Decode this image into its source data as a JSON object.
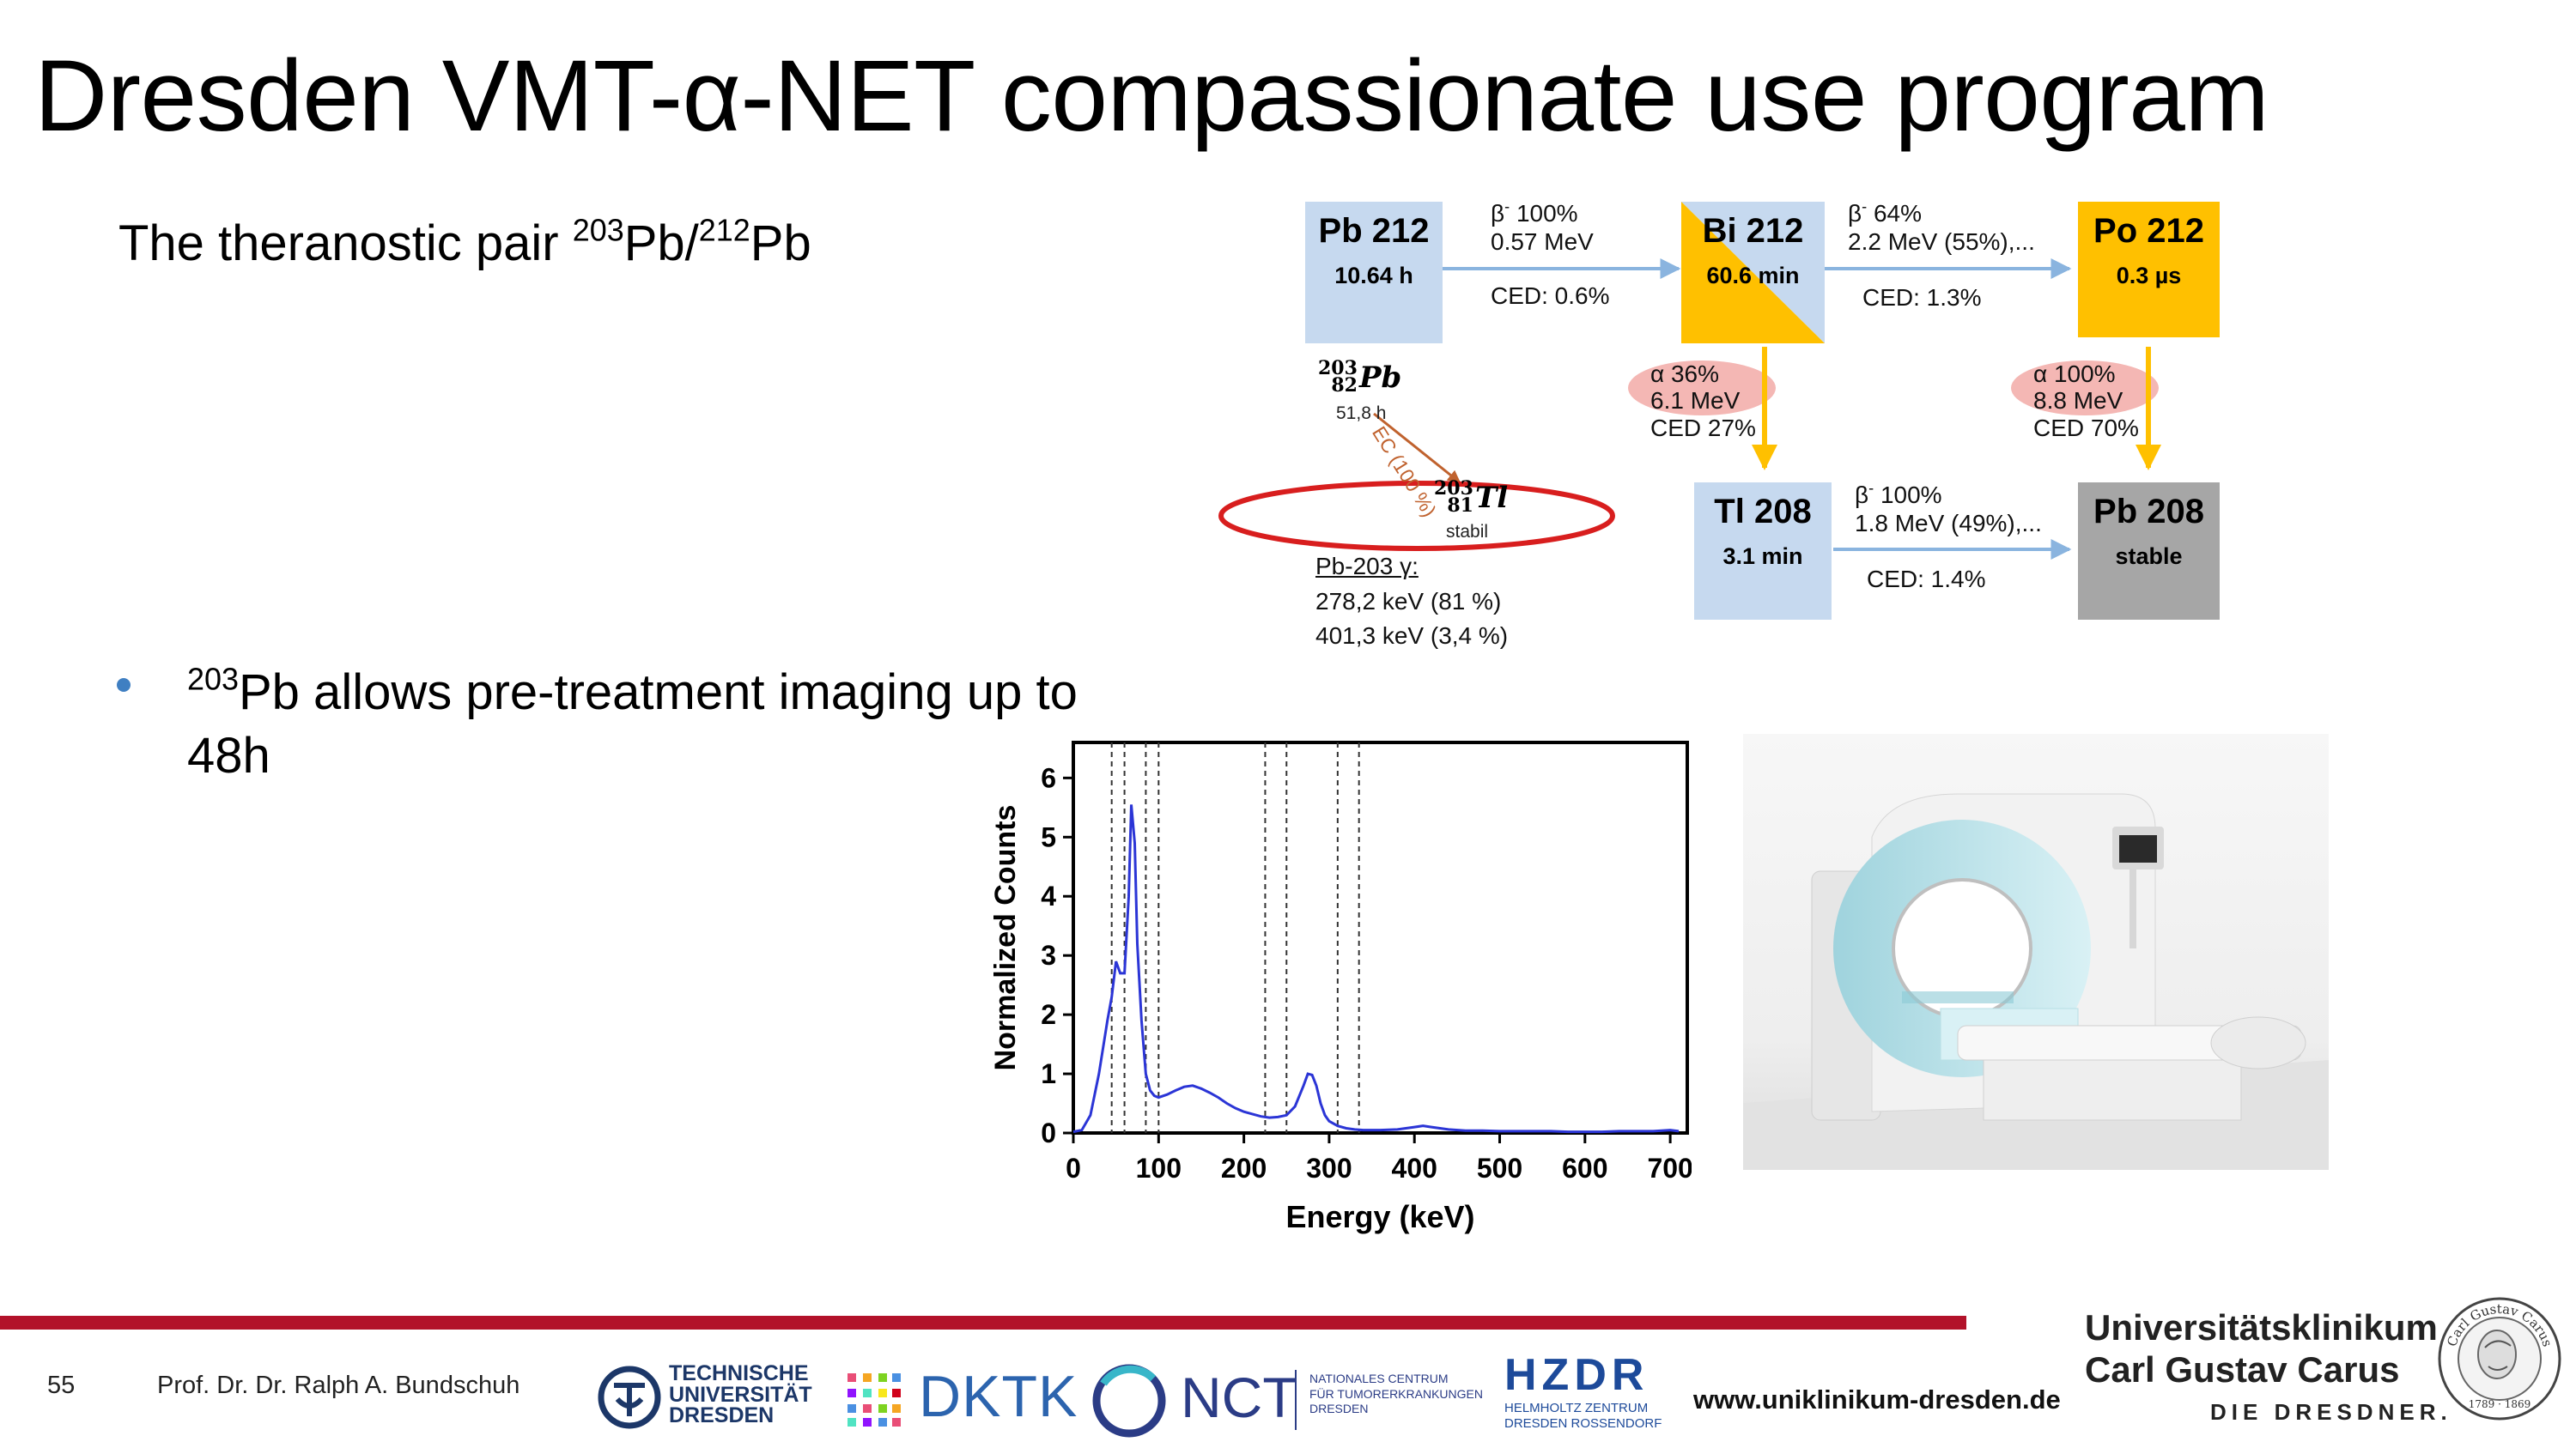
{
  "slide": {
    "title": "Dresden VMT-α-NET compassionate use program",
    "subtitle_prefix": "The theranostic pair ",
    "subtitle_sup1": "203",
    "subtitle_mid": "Pb/",
    "subtitle_sup2": "212",
    "subtitle_end": "Pb",
    "bullet_sup": "203",
    "bullet_text": "Pb allows pre-treatment imaging up to 48h"
  },
  "decay": {
    "nuclides": [
      {
        "name": "Pb 212",
        "halflife": "10.64 h"
      },
      {
        "name": "Bi 212",
        "halflife": "60.6 min"
      },
      {
        "name": "Po 212",
        "halflife": "0.3 µs"
      },
      {
        "name": "Tl 208",
        "halflife": "3.1 min"
      },
      {
        "name": "Pb 208",
        "halflife": "stable"
      }
    ],
    "transitions": {
      "pb212_bi212": {
        "beta": "β",
        "beta_sup": "-",
        "pct": " 100%",
        "energy": "0.57 MeV",
        "ced": "CED: 0.6%"
      },
      "bi212_po212": {
        "beta": "β",
        "beta_sup": "-",
        "pct": " 64%",
        "energy": "2.2 MeV (55%),...",
        "ced": "CED: 1.3%"
      },
      "bi212_tl208": {
        "alpha": "α 36%",
        "energy": "6.1 MeV",
        "ced": "CED 27%"
      },
      "po212_pb208": {
        "alpha": "α 100%",
        "energy": "8.8 MeV",
        "ced": "CED 70%"
      },
      "tl208_pb208": {
        "beta": "β",
        "beta_sup": "-",
        "pct": " 100%",
        "energy": "1.8 MeV (49%),...",
        "ced": "CED: 1.4%"
      }
    },
    "pb203": {
      "mass": "203",
      "z": "82",
      "symbol": "Pb",
      "halflife": "51,8 h",
      "ec": "EC (100 %)",
      "tl_mass": "203",
      "tl_z": "81",
      "tl_symbol": "Tl",
      "tl_state": "stabil",
      "gamma_title": "Pb-203 γ:",
      "gamma_lines": [
        "278,2 keV (81 %)",
        "401,3 keV (3,4 %)"
      ]
    },
    "colors": {
      "blue": "#c6d9ef",
      "yellow": "#ffc000",
      "gray": "#a6a6a6",
      "alpha_pink": "#f4b7b4",
      "arrow_blue": "#8ab4df",
      "ellipse_red": "#d81e1e"
    }
  },
  "chart_data": {
    "type": "line",
    "xlabel": "Energy (keV)",
    "ylabel": "Normalized Counts",
    "xlim": [
      0,
      720
    ],
    "ylim": [
      0,
      6.6
    ],
    "xticks": [
      0,
      100,
      200,
      300,
      400,
      500,
      600,
      700
    ],
    "yticks": [
      0,
      1,
      2,
      3,
      4,
      5,
      6
    ],
    "vlines": [
      45,
      60,
      85,
      100,
      225,
      250,
      310,
      335
    ],
    "series": [
      {
        "color": "#2b35d6",
        "x": [
          0,
          10,
          20,
          30,
          40,
          45,
          50,
          55,
          60,
          65,
          68,
          72,
          75,
          80,
          85,
          90,
          95,
          100,
          110,
          120,
          130,
          140,
          150,
          160,
          170,
          180,
          190,
          200,
          210,
          220,
          230,
          240,
          250,
          260,
          270,
          275,
          280,
          285,
          290,
          295,
          300,
          310,
          320,
          330,
          340,
          360,
          380,
          400,
          410,
          420,
          440,
          460,
          480,
          500,
          520,
          540,
          560,
          580,
          600,
          620,
          640,
          660,
          680,
          700,
          710
        ],
        "y": [
          0.02,
          0.05,
          0.3,
          1.0,
          1.9,
          2.3,
          2.9,
          2.7,
          2.7,
          4.0,
          5.55,
          4.9,
          3.2,
          1.9,
          1.0,
          0.72,
          0.63,
          0.6,
          0.65,
          0.72,
          0.78,
          0.8,
          0.75,
          0.68,
          0.6,
          0.5,
          0.42,
          0.36,
          0.32,
          0.28,
          0.26,
          0.27,
          0.3,
          0.45,
          0.8,
          1.0,
          0.98,
          0.8,
          0.5,
          0.3,
          0.2,
          0.12,
          0.08,
          0.06,
          0.05,
          0.05,
          0.06,
          0.1,
          0.12,
          0.1,
          0.06,
          0.04,
          0.04,
          0.03,
          0.03,
          0.03,
          0.03,
          0.02,
          0.02,
          0.02,
          0.03,
          0.03,
          0.03,
          0.05,
          0.03
        ]
      }
    ]
  },
  "footer": {
    "page_number": "55",
    "author": "Prof. Dr. Dr. Ralph A. Bundschuh",
    "tud_lines": [
      "TECHNISCHE",
      "UNIVERSITÄT",
      "DRESDEN"
    ],
    "dktk": "DKTK",
    "nct": "NCT",
    "nct_sub": [
      "NATIONALES CENTRUM",
      "FÜR TUMORERKRANKUNGEN",
      "DRESDEN"
    ],
    "hzdr": "HZDR",
    "hzdr_sub": [
      "HELMHOLTZ ZENTRUM",
      "DRESDEN ROSSENDORF"
    ],
    "website": "www.uniklinikum-dresden.de",
    "uk_line1": "Universitätsklinikum",
    "uk_line2": "Carl Gustav Carus",
    "uk_line3": "DIE DRESDNER.",
    "seal_text": "Carl Gustav Carus",
    "seal_years": "1789 · 1869"
  }
}
